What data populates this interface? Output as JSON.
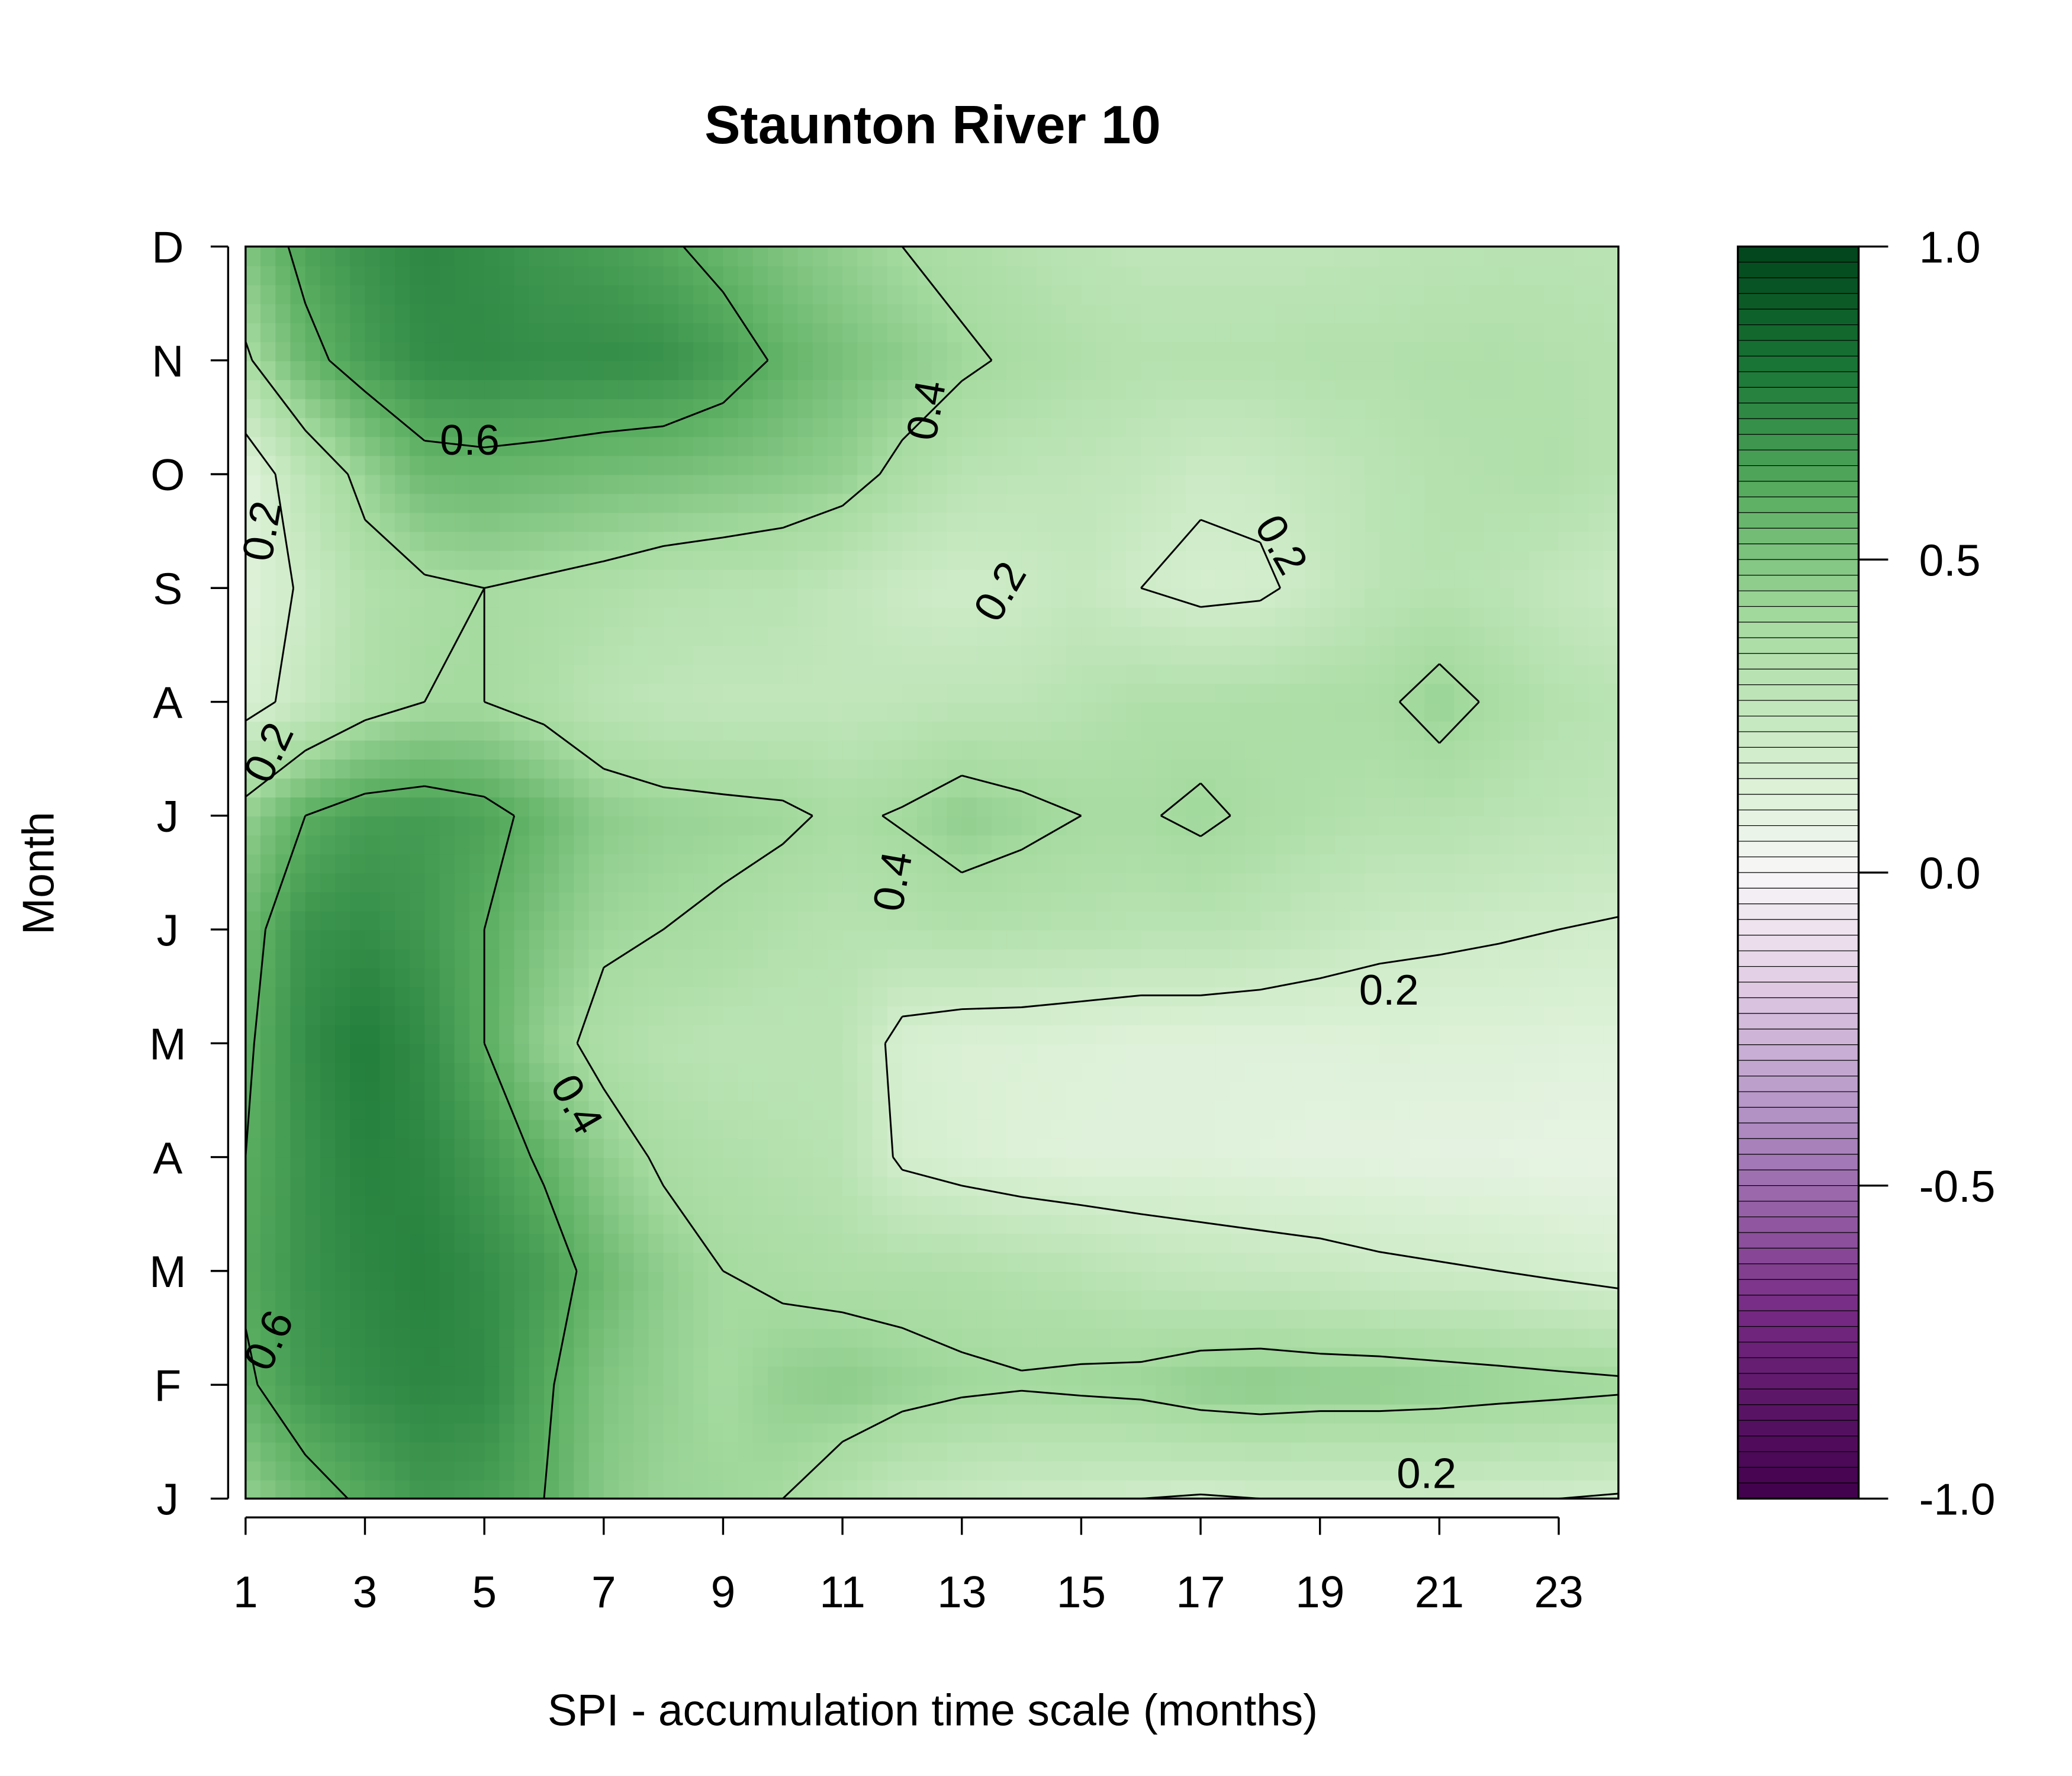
{
  "chart_data": {
    "type": "heatmap",
    "title": "Staunton River 10",
    "xlabel": "SPI - accumulation time scale (months)",
    "ylabel": "Month",
    "x": [
      1,
      2,
      3,
      4,
      5,
      6,
      7,
      8,
      9,
      10,
      11,
      12,
      13,
      14,
      15,
      16,
      17,
      18,
      19,
      20,
      21,
      22,
      23,
      24
    ],
    "xticks": [
      "1",
      "3",
      "5",
      "7",
      "9",
      "11",
      "13",
      "15",
      "17",
      "19",
      "21",
      "23"
    ],
    "xlim": [
      1,
      24
    ],
    "y_months": [
      "J",
      "F",
      "M",
      "A",
      "M",
      "J",
      "J",
      "A",
      "S",
      "O",
      "N",
      "D"
    ],
    "colorbar": {
      "ticks": [
        "1.0",
        "0.5",
        "0.0",
        "-0.5",
        "-1.0"
      ],
      "range": [
        -1.0,
        1.0
      ],
      "low_color": "#40004b",
      "mid_color": "#f7f7f7",
      "high_color": "#00441b"
    },
    "contour_labels": [
      "0.6",
      "0.4",
      "0.2",
      "0.2",
      "0.2",
      "0.2",
      "0.4",
      "0.2",
      "0.4",
      "0.6",
      "0.2",
      "0.2"
    ],
    "values": [
      [
        0.45,
        0.55,
        0.62,
        0.68,
        0.66,
        0.6,
        0.48,
        0.43,
        0.42,
        0.4,
        0.33,
        0.27,
        0.24,
        0.22,
        0.21,
        0.2,
        0.19,
        0.2,
        0.2,
        0.2,
        0.21,
        0.2,
        0.2,
        0.19
      ],
      [
        0.58,
        0.68,
        0.72,
        0.74,
        0.73,
        0.62,
        0.5,
        0.45,
        0.4,
        0.45,
        0.47,
        0.44,
        0.42,
        0.41,
        0.42,
        0.43,
        0.46,
        0.47,
        0.46,
        0.46,
        0.45,
        0.44,
        0.43,
        0.42
      ],
      [
        0.62,
        0.7,
        0.74,
        0.76,
        0.72,
        0.66,
        0.55,
        0.46,
        0.4,
        0.38,
        0.36,
        0.36,
        0.35,
        0.33,
        0.31,
        0.28,
        0.26,
        0.25,
        0.24,
        0.22,
        0.21,
        0.2,
        0.18,
        0.16
      ],
      [
        0.6,
        0.7,
        0.76,
        0.74,
        0.67,
        0.58,
        0.46,
        0.38,
        0.35,
        0.33,
        0.31,
        0.18,
        0.15,
        0.13,
        0.12,
        0.12,
        0.12,
        0.11,
        0.1,
        0.1,
        0.09,
        0.09,
        0.08,
        0.08
      ],
      [
        0.58,
        0.72,
        0.78,
        0.72,
        0.6,
        0.45,
        0.36,
        0.32,
        0.3,
        0.3,
        0.3,
        0.16,
        0.14,
        0.14,
        0.13,
        0.12,
        0.12,
        0.12,
        0.12,
        0.13,
        0.13,
        0.13,
        0.12,
        0.12
      ],
      [
        0.55,
        0.7,
        0.72,
        0.68,
        0.6,
        0.5,
        0.42,
        0.4,
        0.38,
        0.34,
        0.32,
        0.33,
        0.34,
        0.33,
        0.32,
        0.31,
        0.31,
        0.29,
        0.26,
        0.23,
        0.22,
        0.21,
        0.2,
        0.19
      ],
      [
        0.45,
        0.6,
        0.66,
        0.67,
        0.64,
        0.56,
        0.47,
        0.44,
        0.43,
        0.42,
        0.38,
        0.41,
        0.46,
        0.43,
        0.4,
        0.39,
        0.42,
        0.38,
        0.35,
        0.33,
        0.33,
        0.31,
        0.29,
        0.28
      ],
      [
        0.15,
        0.25,
        0.35,
        0.4,
        0.4,
        0.36,
        0.3,
        0.28,
        0.27,
        0.27,
        0.27,
        0.28,
        0.29,
        0.29,
        0.32,
        0.35,
        0.35,
        0.36,
        0.37,
        0.38,
        0.44,
        0.38,
        0.33,
        0.31
      ],
      [
        0.12,
        0.22,
        0.34,
        0.38,
        0.4,
        0.38,
        0.36,
        0.33,
        0.32,
        0.31,
        0.27,
        0.22,
        0.2,
        0.22,
        0.25,
        0.2,
        0.17,
        0.18,
        0.24,
        0.3,
        0.32,
        0.3,
        0.26,
        0.22
      ],
      [
        0.1,
        0.3,
        0.44,
        0.55,
        0.56,
        0.55,
        0.53,
        0.52,
        0.5,
        0.48,
        0.45,
        0.37,
        0.31,
        0.29,
        0.28,
        0.26,
        0.22,
        0.23,
        0.27,
        0.3,
        0.33,
        0.34,
        0.35,
        0.32
      ],
      [
        0.38,
        0.56,
        0.66,
        0.72,
        0.73,
        0.72,
        0.72,
        0.71,
        0.66,
        0.58,
        0.52,
        0.47,
        0.42,
        0.38,
        0.35,
        0.33,
        0.33,
        0.33,
        0.34,
        0.34,
        0.35,
        0.35,
        0.34,
        0.33
      ],
      [
        0.5,
        0.64,
        0.7,
        0.74,
        0.72,
        0.68,
        0.66,
        0.62,
        0.56,
        0.5,
        0.45,
        0.4,
        0.36,
        0.33,
        0.3,
        0.28,
        0.28,
        0.28,
        0.28,
        0.29,
        0.3,
        0.31,
        0.31,
        0.3
      ]
    ]
  }
}
